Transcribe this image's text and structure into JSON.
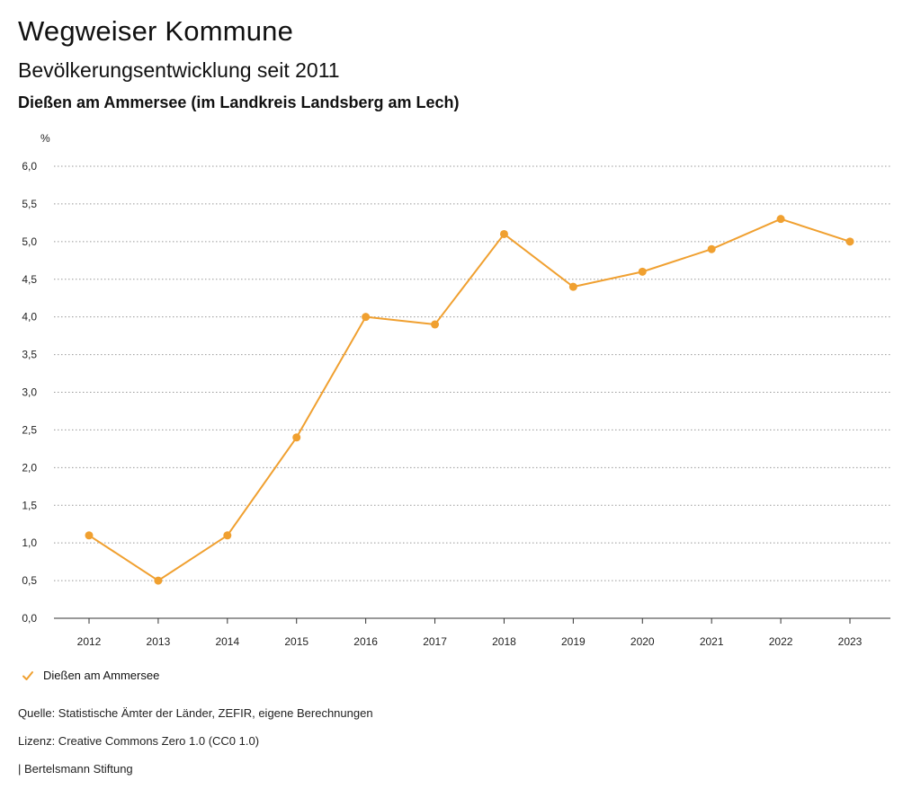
{
  "header": {
    "title": "Wegweiser Kommune",
    "subtitle": "Bevölkerungsentwicklung seit 2011",
    "region": "Dießen am Ammersee (im Landkreis Landsberg am Lech)"
  },
  "legend": {
    "label": "Dießen am Ammersee",
    "icon": "check-icon"
  },
  "footer": {
    "source": "Quelle: Statistische Ämter der Länder, ZEFIR, eigene Berechnungen",
    "license": "Lizenz: Creative Commons Zero 1.0 (CC0 1.0)",
    "brand": "| Bertelsmann Stiftung"
  },
  "colors": {
    "series": "#F0A030",
    "grid": "#999999",
    "axis": "#333333"
  },
  "chart_data": {
    "type": "line",
    "unit": "%",
    "categories": [
      "2012",
      "2013",
      "2014",
      "2015",
      "2016",
      "2017",
      "2018",
      "2019",
      "2020",
      "2021",
      "2022",
      "2023"
    ],
    "series": [
      {
        "name": "Dießen am Ammersee",
        "values": [
          1.1,
          0.5,
          1.1,
          2.4,
          4.0,
          3.9,
          5.1,
          4.4,
          4.6,
          4.9,
          5.3,
          5.0
        ]
      }
    ],
    "yticks": [
      "0,0",
      "0,5",
      "1,0",
      "1,5",
      "2,0",
      "2,5",
      "3,0",
      "3,5",
      "4,0",
      "4,5",
      "5,0",
      "5,5",
      "6,0"
    ],
    "ylim": [
      0,
      6
    ],
    "ystep": 0.5,
    "grid": true,
    "legend_position": "bottom-left"
  }
}
